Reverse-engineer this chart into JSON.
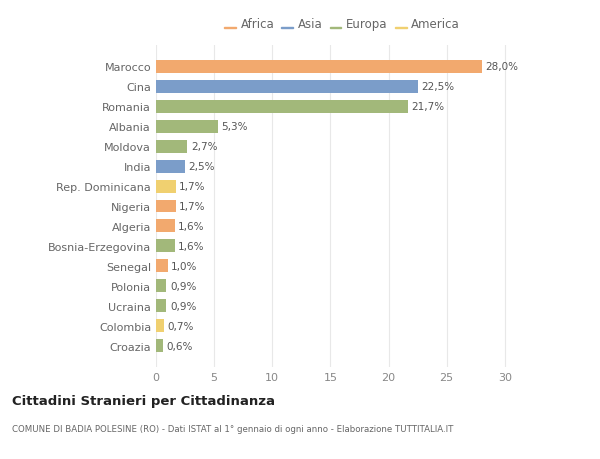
{
  "countries": [
    "Croazia",
    "Colombia",
    "Ucraina",
    "Polonia",
    "Senegal",
    "Bosnia-Erzegovina",
    "Algeria",
    "Nigeria",
    "Rep. Dominicana",
    "India",
    "Moldova",
    "Albania",
    "Romania",
    "Cina",
    "Marocco"
  ],
  "values": [
    0.6,
    0.7,
    0.9,
    0.9,
    1.0,
    1.6,
    1.6,
    1.7,
    1.7,
    2.5,
    2.7,
    5.3,
    21.7,
    22.5,
    28.0
  ],
  "labels": [
    "0,6%",
    "0,7%",
    "0,9%",
    "0,9%",
    "1,0%",
    "1,6%",
    "1,6%",
    "1,7%",
    "1,7%",
    "2,5%",
    "2,7%",
    "5,3%",
    "21,7%",
    "22,5%",
    "28,0%"
  ],
  "continents": [
    "Europa",
    "America",
    "Europa",
    "Europa",
    "Africa",
    "Europa",
    "Africa",
    "Africa",
    "America",
    "Asia",
    "Europa",
    "Europa",
    "Europa",
    "Asia",
    "Africa"
  ],
  "colors": {
    "Africa": "#F2A96E",
    "Asia": "#7B9DC9",
    "Europa": "#A2B87A",
    "America": "#F0D070"
  },
  "legend_order": [
    "Africa",
    "Asia",
    "Europa",
    "America"
  ],
  "title": "Cittadini Stranieri per Cittadinanza",
  "subtitle": "COMUNE DI BADIA POLESINE (RO) - Dati ISTAT al 1° gennaio di ogni anno - Elaborazione TUTTITALIA.IT",
  "xlim": [
    0,
    32
  ],
  "xticks": [
    0,
    5,
    10,
    15,
    20,
    25,
    30
  ],
  "background_color": "#ffffff",
  "grid_color": "#e8e8e8",
  "bar_height": 0.65
}
